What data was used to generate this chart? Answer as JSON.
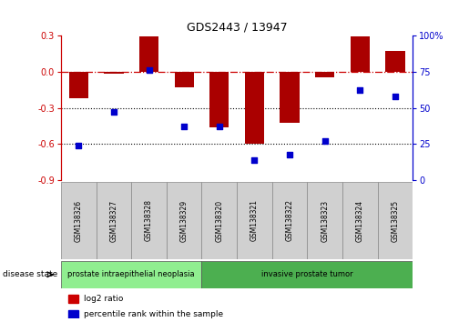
{
  "title": "GDS2443 / 13947",
  "samples": [
    "GSM138326",
    "GSM138327",
    "GSM138328",
    "GSM138329",
    "GSM138320",
    "GSM138321",
    "GSM138322",
    "GSM138323",
    "GSM138324",
    "GSM138325"
  ],
  "log2_ratio": [
    -0.22,
    -0.02,
    0.29,
    -0.13,
    -0.46,
    -0.6,
    -0.42,
    -0.05,
    0.29,
    0.17
  ],
  "percentile_rank": [
    24,
    47,
    76,
    37,
    37,
    14,
    18,
    27,
    62,
    58
  ],
  "disease_groups": [
    {
      "label": "prostate intraepithelial neoplasia",
      "start": 0,
      "end": 3,
      "color": "#90ee90"
    },
    {
      "label": "invasive prostate tumor",
      "start": 4,
      "end": 9,
      "color": "#4caf50"
    }
  ],
  "bar_color": "#aa0000",
  "dot_color": "#0000cc",
  "ylim_left": [
    -0.9,
    0.3
  ],
  "ylim_right": [
    0,
    100
  ],
  "yticks_left": [
    0.3,
    0.0,
    -0.3,
    -0.6,
    -0.9
  ],
  "yticks_right": [
    100,
    75,
    50,
    25,
    0
  ],
  "dotted_lines": [
    -0.3,
    -0.6
  ],
  "legend_items": [
    {
      "label": "log2 ratio",
      "color": "#cc0000",
      "marker": "s"
    },
    {
      "label": "percentile rank within the sample",
      "color": "#0000cc",
      "marker": "s"
    }
  ],
  "fig_width": 5.15,
  "fig_height": 3.54,
  "dpi": 100
}
